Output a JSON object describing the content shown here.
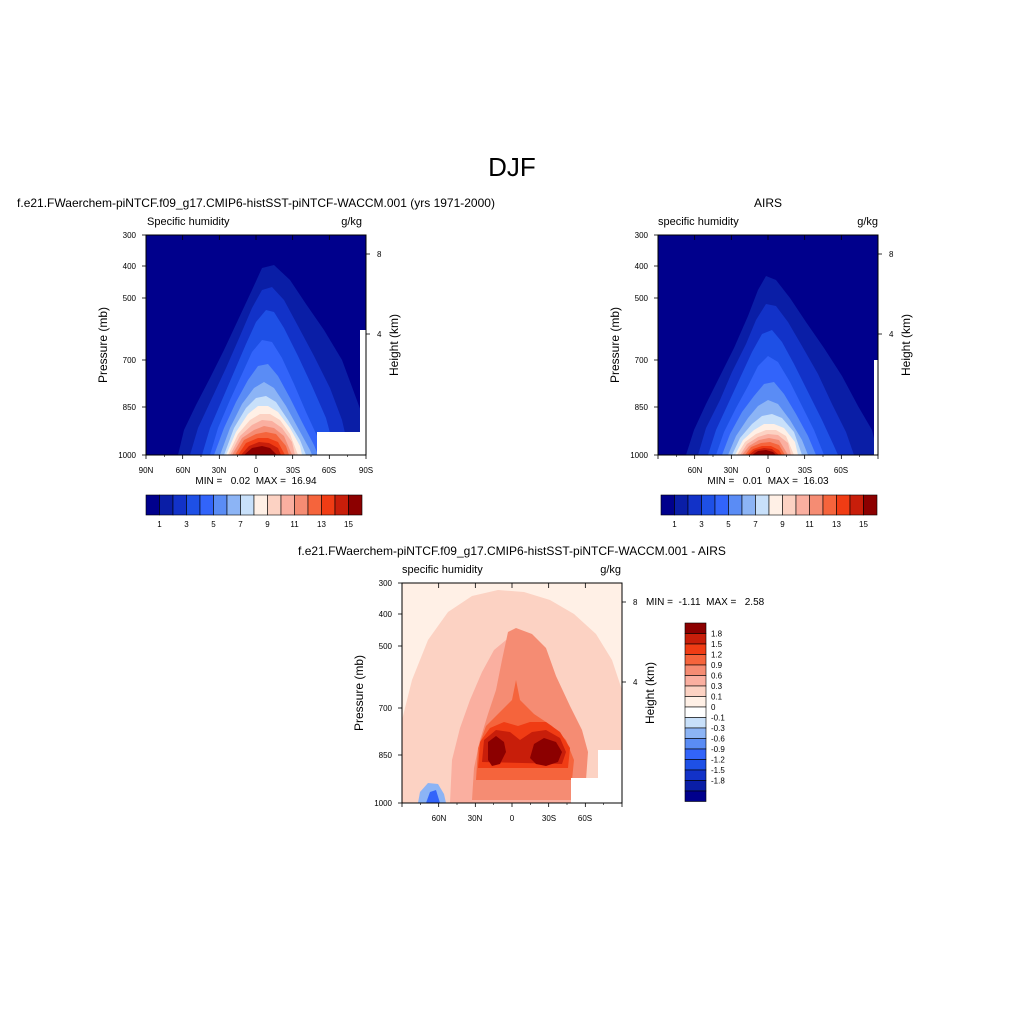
{
  "title": "DJF",
  "chart_data": [
    {
      "id": "model",
      "type": "heatmap",
      "title": "f.e21.FWaerchem-piNTCF.f09_g17.CMIP6-histSST-piNTCF-WACCM.001 (yrs 1971-2000)",
      "left_label": "Specific humidity",
      "right_label": "g/kg",
      "ylabel": "Pressure (mb)",
      "ylabel_right": "Height (km)",
      "x_ticks": [
        "90N",
        "60N",
        "30N",
        "0",
        "30S",
        "60S",
        "90S"
      ],
      "y_ticks": [
        "300",
        "400",
        "500",
        "700",
        "850",
        "1000"
      ],
      "height_ticks": [
        "8",
        "4"
      ],
      "min_max": "MIN =   0.02  MAX =  16.94",
      "min": 0.02,
      "max": 16.94,
      "xlim": [
        90,
        -90
      ],
      "ylim": [
        1000,
        300
      ],
      "colorbar_orientation": "horizontal",
      "colorbar_labels": [
        "1",
        "3",
        "5",
        "7",
        "9",
        "11",
        "13",
        "15"
      ],
      "colors": [
        "#00008c",
        "#0a1ea6",
        "#1232c8",
        "#1e50e6",
        "#3264fa",
        "#5a8cf5",
        "#8cb4f5",
        "#c8e0fa",
        "#fff0e6",
        "#fcd2c3",
        "#faafa0",
        "#f58c73",
        "#f5643c",
        "#f03c14",
        "#c81e0a",
        "#8c0000"
      ]
    },
    {
      "id": "obs",
      "type": "heatmap",
      "title": "AIRS",
      "left_label": "specific humidity",
      "right_label": "g/kg",
      "ylabel": "Pressure (mb)",
      "ylabel_right": "Height (km)",
      "x_ticks": [
        "60N",
        "30N",
        "0",
        "30S",
        "60S"
      ],
      "y_ticks": [
        "300",
        "400",
        "500",
        "700",
        "850",
        "1000"
      ],
      "height_ticks": [
        "8",
        "4"
      ],
      "min_max": "MIN =   0.01  MAX =  16.03",
      "min": 0.01,
      "max": 16.03,
      "xlim": [
        90,
        -90
      ],
      "ylim": [
        1000,
        300
      ],
      "colorbar_orientation": "horizontal",
      "colorbar_labels": [
        "1",
        "3",
        "5",
        "7",
        "9",
        "11",
        "13",
        "15"
      ],
      "colors": [
        "#00008c",
        "#0a1ea6",
        "#1232c8",
        "#1e50e6",
        "#3264fa",
        "#5a8cf5",
        "#8cb4f5",
        "#c8e0fa",
        "#fff0e6",
        "#fcd2c3",
        "#faafa0",
        "#f58c73",
        "#f5643c",
        "#f03c14",
        "#c81e0a",
        "#8c0000"
      ]
    },
    {
      "id": "diff",
      "type": "heatmap",
      "title": "f.e21.FWaerchem-piNTCF.f09_g17.CMIP6-histSST-piNTCF-WACCM.001 - AIRS",
      "left_label": "specific humidity",
      "right_label": "g/kg",
      "ylabel": "Pressure (mb)",
      "ylabel_right": "Height (km)",
      "x_ticks": [
        "60N",
        "30N",
        "0",
        "30S",
        "60S"
      ],
      "y_ticks": [
        "300",
        "400",
        "500",
        "700",
        "850",
        "1000"
      ],
      "height_ticks": [
        "8",
        "4"
      ],
      "min_max": "MIN =  -1.11  MAX =   2.58",
      "min": -1.11,
      "max": 2.58,
      "xlim": [
        90,
        -90
      ],
      "ylim": [
        1000,
        300
      ],
      "colorbar_orientation": "vertical",
      "colorbar_labels": [
        "1.8",
        "1.5",
        "1.2",
        "0.9",
        "0.6",
        "0.3",
        "0.1",
        "0",
        "-0.1",
        "-0.3",
        "-0.6",
        "-0.9",
        "-1.2",
        "-1.5",
        "-1.8"
      ],
      "colors": [
        "#8c0000",
        "#c81e0a",
        "#f03c14",
        "#f5643c",
        "#f58c73",
        "#faafa0",
        "#fcd2c3",
        "#fff0e6",
        "#ffffff",
        "#c8e0fa",
        "#8cb4f5",
        "#5a8cf5",
        "#3264fa",
        "#1e50e6",
        "#1232c8",
        "#0a1ea6",
        "#00008c"
      ]
    }
  ]
}
